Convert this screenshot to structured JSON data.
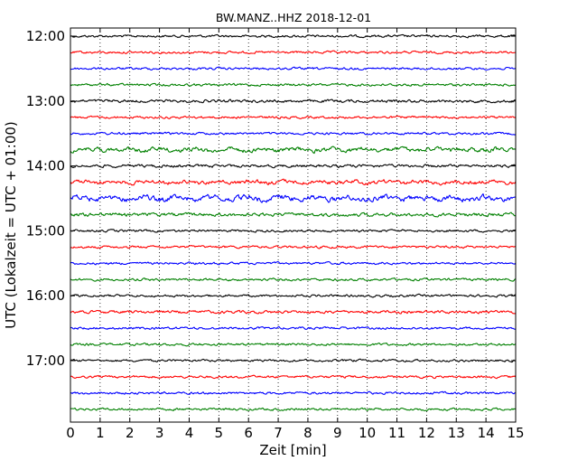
{
  "chart_data": {
    "type": "line",
    "title": "BW.MANZ..HHZ 2018-12-01",
    "xlabel": "Zeit  [min]",
    "ylabel": "UTC (Lokalzeit = UTC + 01:00)",
    "xlim": [
      0,
      15
    ],
    "x_ticks": [
      "0",
      "1",
      "2",
      "3",
      "4",
      "5",
      "6",
      "7",
      "8",
      "9",
      "10",
      "11",
      "12",
      "13",
      "14",
      "15"
    ],
    "y_ticks": [
      "12:00",
      "13:00",
      "14:00",
      "15:00",
      "16:00",
      "17:00"
    ],
    "grid": "vertical dotted",
    "trace_minutes": 15,
    "series": [
      {
        "start": "12:00",
        "color": "#000000",
        "amplitude": 0.25
      },
      {
        "start": "12:15",
        "color": "#ff0000",
        "amplitude": 0.25
      },
      {
        "start": "12:30",
        "color": "#0000ff",
        "amplitude": 0.25
      },
      {
        "start": "12:45",
        "color": "#008000",
        "amplitude": 0.25
      },
      {
        "start": "13:00",
        "color": "#000000",
        "amplitude": 0.3
      },
      {
        "start": "13:15",
        "color": "#ff0000",
        "amplitude": 0.25
      },
      {
        "start": "13:30",
        "color": "#0000ff",
        "amplitude": 0.25
      },
      {
        "start": "13:45",
        "color": "#008000",
        "amplitude": 0.45
      },
      {
        "start": "14:00",
        "color": "#000000",
        "amplitude": 0.3
      },
      {
        "start": "14:15",
        "color": "#ff0000",
        "amplitude": 0.4
      },
      {
        "start": "14:30",
        "color": "#0000ff",
        "amplitude": 0.55
      },
      {
        "start": "14:45",
        "color": "#008000",
        "amplitude": 0.35
      },
      {
        "start": "15:00",
        "color": "#000000",
        "amplitude": 0.25
      },
      {
        "start": "15:15",
        "color": "#ff0000",
        "amplitude": 0.25
      },
      {
        "start": "15:30",
        "color": "#0000ff",
        "amplitude": 0.25
      },
      {
        "start": "15:45",
        "color": "#008000",
        "amplitude": 0.25
      },
      {
        "start": "16:00",
        "color": "#000000",
        "amplitude": 0.25
      },
      {
        "start": "16:15",
        "color": "#ff0000",
        "amplitude": 0.3
      },
      {
        "start": "16:30",
        "color": "#0000ff",
        "amplitude": 0.25
      },
      {
        "start": "16:45",
        "color": "#008000",
        "amplitude": 0.25
      },
      {
        "start": "17:00",
        "color": "#000000",
        "amplitude": 0.25
      },
      {
        "start": "17:15",
        "color": "#ff0000",
        "amplitude": 0.25
      },
      {
        "start": "17:30",
        "color": "#0000ff",
        "amplitude": 0.25
      },
      {
        "start": "17:45",
        "color": "#008000",
        "amplitude": 0.25
      }
    ]
  }
}
